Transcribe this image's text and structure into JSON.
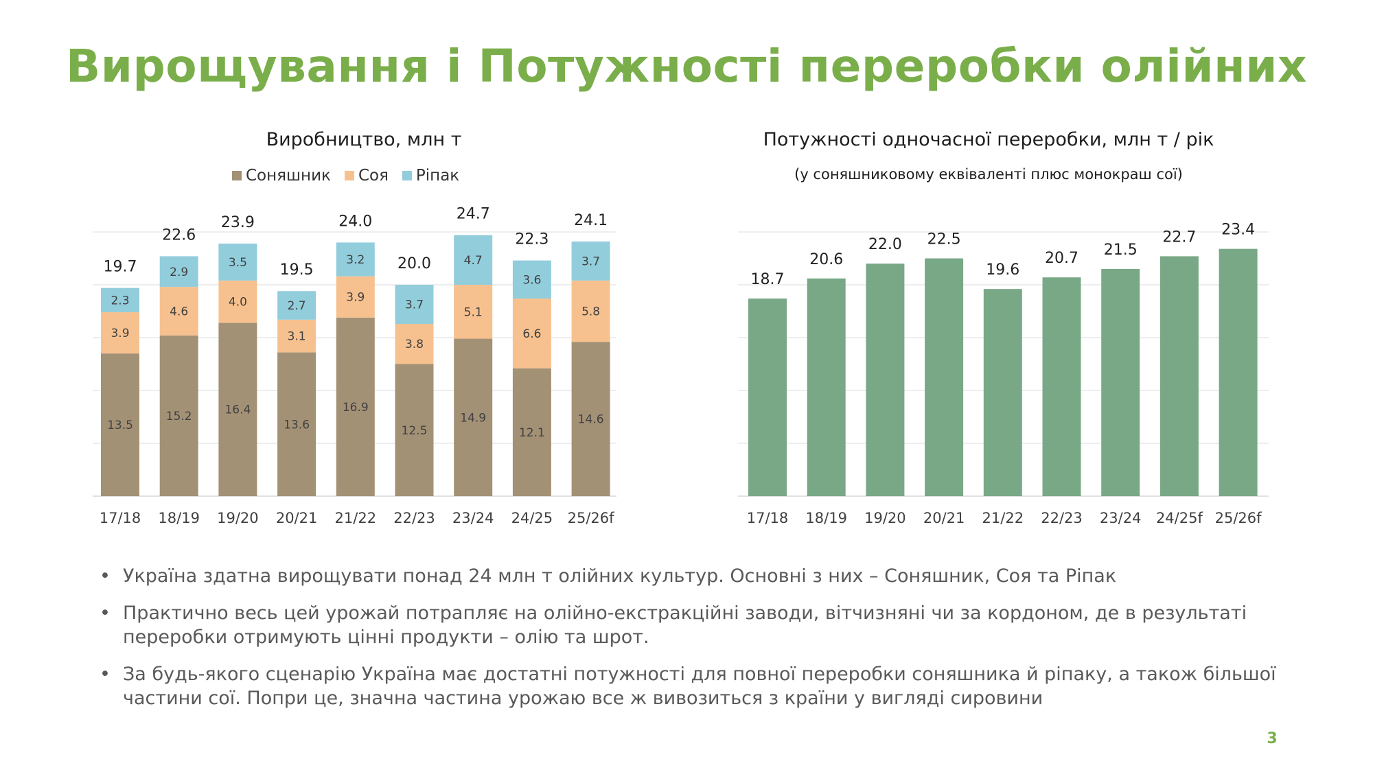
{
  "slide": {
    "title": "Вирощування і Потужності переробки олійних",
    "page_number": "3"
  },
  "colors": {
    "title": "#7aae4a",
    "sunflower": "#a39176",
    "soy": "#f7c18f",
    "rapeseed": "#92cddc",
    "capacity": "#79a886",
    "gridline": "#e3e3e3",
    "text": "#404040"
  },
  "chart_data": [
    {
      "type": "bar",
      "stacked": true,
      "title": "Виробництво,  млн т",
      "categories": [
        "17/18",
        "18/19",
        "19/20",
        "20/21",
        "21/22",
        "22/23",
        "23/24",
        "24/25",
        "25/26f"
      ],
      "series": [
        {
          "name": "Соняшник",
          "values": [
            13.5,
            15.2,
            16.4,
            13.6,
            16.9,
            12.5,
            14.9,
            12.1,
            14.6
          ]
        },
        {
          "name": "Соя",
          "values": [
            3.9,
            4.6,
            4.0,
            3.1,
            3.9,
            3.8,
            5.1,
            6.6,
            5.8
          ]
        },
        {
          "name": "Ріпак",
          "values": [
            2.3,
            2.9,
            3.5,
            2.7,
            3.2,
            3.7,
            4.7,
            3.6,
            3.7
          ]
        }
      ],
      "totals": [
        "19.7",
        "22.6",
        "23.9",
        "19.5",
        "24.0",
        "20.0",
        "24.7",
        "22.3",
        "24.1"
      ],
      "ylim": [
        0,
        25
      ],
      "grid": true,
      "legend": "top"
    },
    {
      "type": "bar",
      "title": "Потужності одночасної переробки,  млн т / рік",
      "subtitle": "(у соняшниковому еквіваленті плюс монокраш сої)",
      "categories": [
        "17/18",
        "18/19",
        "19/20",
        "20/21",
        "21/22",
        "22/23",
        "23/24",
        "24/25f",
        "25/26f"
      ],
      "values": [
        18.7,
        20.6,
        22.0,
        22.5,
        19.6,
        20.7,
        21.5,
        22.7,
        23.4
      ],
      "value_labels": [
        "18.7",
        "20.6",
        "22.0",
        "22.5",
        "19.6",
        "20.7",
        "21.5",
        "22.7",
        "23.4"
      ],
      "ylim": [
        0,
        25
      ],
      "grid": true
    }
  ],
  "bullets": [
    "Україна здатна вирощувати понад 24 млн т олійних культур. Основні з них – Соняшник, Соя та Ріпак",
    "Практично весь цей урожай потрапляє на олійно-екстракційні заводи, вітчизняні чи за кордоном, де в результаті переробки отримують цінні продукти – олію та шрот.",
    "За будь-якого сценарію Україна має достатні потужності для повної переробки соняшника й ріпаку, а також більшої частини сої. Попри це, значна частина урожаю все ж вивозиться з країни у вигляді сировини"
  ],
  "bullet_symbol": "•"
}
